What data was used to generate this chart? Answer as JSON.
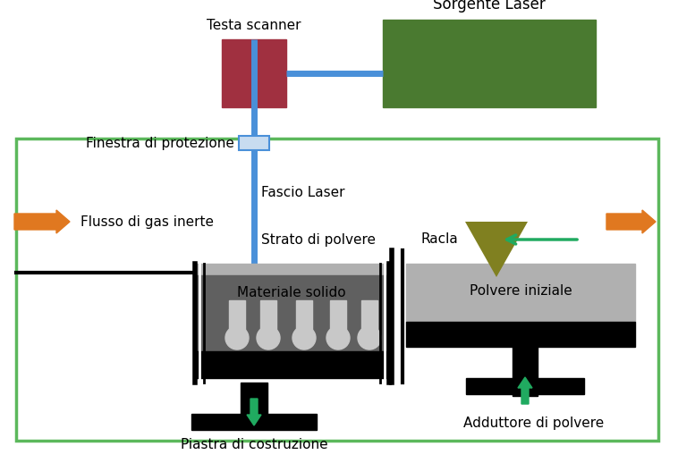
{
  "fig_width": 7.58,
  "fig_height": 5.18,
  "dpi": 100,
  "bg_color": "#ffffff",
  "green_box_color": "#5cb85c",
  "scanner_head_color": "#a03040",
  "laser_source_color": "#4a7a30",
  "laser_beam_color": "#4a90d9",
  "window_color": "#c8dcf0",
  "dark_gray": "#606060",
  "medium_gray": "#888888",
  "light_gray": "#b0b0b0",
  "lighter_gray": "#c8c8c8",
  "black": "#000000",
  "white": "#ffffff",
  "racla_color": "#808020",
  "orange_arrow_color": "#e07820",
  "green_arrow_color": "#20aa60",
  "text_color": "#000000",
  "labels": {
    "testa_scanner": "Testa scanner",
    "sorgente_laser": "Sorgente Laser",
    "finestra_protezione": "Finestra di protezione",
    "flusso_gas": "Flusso di gas inerte",
    "fascio_laser": "Fascio Laser",
    "strato_polvere": "Strato di polvere",
    "materiale_solido": "Materiale solido",
    "polvere_iniziale": "Polvere iniziale",
    "racla": "Racla",
    "piastra_costruzione": "Piastra di costruzione",
    "adduttore_polvere": "Adduttore di polvere"
  }
}
